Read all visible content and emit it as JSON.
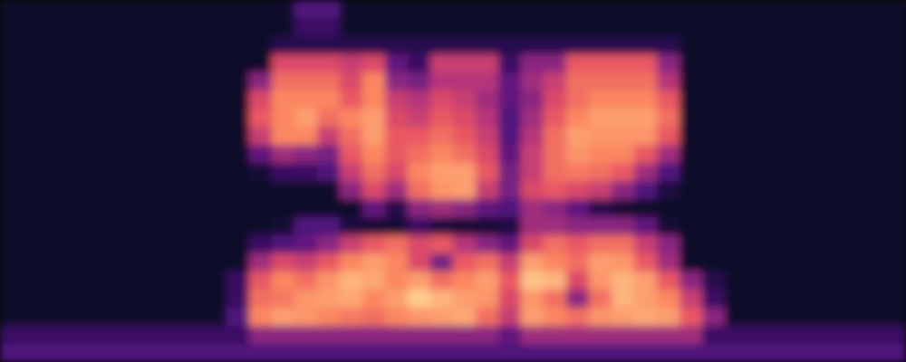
{
  "chart_data": {
    "type": "heatmap",
    "tick_labels": false,
    "color_range": [
      0,
      100
    ],
    "cells": [
      [
        8,
        8,
        8,
        8,
        8,
        8,
        8,
        8,
        8,
        8,
        8,
        8,
        8,
        25,
        25,
        8,
        8,
        8,
        8,
        8,
        8,
        8,
        8,
        8,
        8,
        8,
        8,
        8,
        8,
        8,
        8,
        8,
        8,
        8,
        8,
        8,
        8,
        8,
        8,
        8
      ],
      [
        8,
        8,
        8,
        8,
        8,
        8,
        8,
        8,
        8,
        8,
        8,
        8,
        8,
        20,
        20,
        8,
        8,
        8,
        8,
        8,
        8,
        8,
        8,
        8,
        8,
        8,
        8,
        8,
        8,
        8,
        8,
        8,
        8,
        8,
        8,
        8,
        8,
        8,
        8,
        8
      ],
      [
        8,
        8,
        8,
        8,
        8,
        8,
        8,
        8,
        8,
        8,
        8,
        8,
        15,
        15,
        15,
        15,
        15,
        15,
        15,
        15,
        15,
        15,
        15,
        15,
        15,
        15,
        15,
        15,
        15,
        15,
        8,
        8,
        8,
        8,
        8,
        8,
        8,
        8,
        8,
        8
      ],
      [
        8,
        8,
        8,
        8,
        8,
        8,
        8,
        8,
        8,
        8,
        8,
        8,
        60,
        60,
        60,
        55,
        60,
        30,
        20,
        55,
        55,
        55,
        20,
        40,
        40,
        65,
        65,
        65,
        65,
        40,
        8,
        8,
        8,
        8,
        8,
        8,
        8,
        8,
        8,
        8
      ],
      [
        8,
        8,
        8,
        8,
        8,
        8,
        8,
        8,
        8,
        8,
        8,
        40,
        70,
        70,
        70,
        60,
        75,
        40,
        35,
        50,
        50,
        50,
        30,
        45,
        55,
        70,
        70,
        70,
        70,
        50,
        8,
        8,
        8,
        8,
        8,
        8,
        8,
        8,
        8,
        8
      ],
      [
        8,
        8,
        8,
        8,
        8,
        8,
        8,
        8,
        8,
        8,
        8,
        60,
        75,
        75,
        75,
        65,
        75,
        55,
        50,
        60,
        55,
        45,
        30,
        40,
        60,
        70,
        75,
        75,
        75,
        65,
        8,
        8,
        8,
        8,
        8,
        8,
        8,
        8,
        8,
        8
      ],
      [
        8,
        8,
        8,
        8,
        8,
        8,
        8,
        8,
        8,
        8,
        8,
        65,
        75,
        80,
        70,
        75,
        80,
        60,
        55,
        65,
        60,
        50,
        25,
        45,
        65,
        75,
        80,
        80,
        80,
        70,
        8,
        8,
        8,
        8,
        8,
        8,
        8,
        8,
        8,
        8
      ],
      [
        8,
        8,
        8,
        8,
        8,
        8,
        8,
        8,
        8,
        8,
        8,
        55,
        75,
        75,
        55,
        70,
        80,
        65,
        65,
        70,
        65,
        55,
        25,
        50,
        70,
        80,
        78,
        78,
        78,
        65,
        8,
        8,
        8,
        8,
        8,
        8,
        8,
        8,
        8,
        8
      ],
      [
        8,
        8,
        8,
        8,
        8,
        8,
        8,
        8,
        8,
        8,
        8,
        30,
        45,
        40,
        35,
        65,
        75,
        65,
        70,
        75,
        70,
        60,
        30,
        55,
        70,
        78,
        75,
        75,
        65,
        45,
        8,
        8,
        8,
        8,
        8,
        8,
        8,
        8,
        8,
        8
      ],
      [
        8,
        8,
        8,
        8,
        8,
        8,
        8,
        8,
        8,
        8,
        8,
        10,
        20,
        20,
        25,
        55,
        70,
        60,
        75,
        80,
        80,
        65,
        35,
        55,
        70,
        72,
        70,
        65,
        45,
        25,
        8,
        8,
        8,
        8,
        8,
        8,
        8,
        8,
        8,
        8
      ],
      [
        8,
        8,
        8,
        8,
        8,
        8,
        8,
        8,
        8,
        8,
        8,
        8,
        8,
        8,
        8,
        40,
        60,
        45,
        70,
        78,
        80,
        55,
        35,
        60,
        65,
        60,
        55,
        40,
        25,
        12,
        8,
        8,
        8,
        8,
        8,
        8,
        8,
        8,
        8,
        8
      ],
      [
        8,
        8,
        8,
        8,
        8,
        8,
        8,
        8,
        8,
        8,
        8,
        8,
        8,
        8,
        8,
        8,
        30,
        15,
        40,
        45,
        40,
        30,
        25,
        45,
        40,
        30,
        15,
        10,
        8,
        8,
        8,
        8,
        8,
        8,
        8,
        8,
        8,
        8,
        8,
        8
      ],
      [
        8,
        8,
        8,
        8,
        8,
        8,
        8,
        8,
        8,
        8,
        8,
        8,
        10,
        25,
        25,
        12,
        10,
        10,
        20,
        12,
        10,
        10,
        12,
        45,
        45,
        40,
        40,
        40,
        30,
        10,
        8,
        8,
        8,
        8,
        8,
        8,
        8,
        8,
        8,
        8
      ],
      [
        8,
        8,
        8,
        8,
        8,
        8,
        8,
        8,
        8,
        8,
        8,
        20,
        25,
        30,
        40,
        55,
        65,
        70,
        60,
        65,
        50,
        40,
        30,
        60,
        70,
        65,
        70,
        70,
        55,
        40,
        8,
        8,
        8,
        8,
        8,
        8,
        8,
        8,
        8,
        8
      ],
      [
        8,
        8,
        8,
        8,
        8,
        8,
        8,
        8,
        8,
        8,
        8,
        45,
        60,
        55,
        65,
        75,
        80,
        75,
        60,
        35,
        65,
        70,
        55,
        80,
        75,
        70,
        80,
        78,
        65,
        45,
        8,
        8,
        8,
        8,
        8,
        8,
        8,
        8,
        8,
        8
      ],
      [
        8,
        8,
        8,
        8,
        8,
        8,
        8,
        8,
        8,
        8,
        20,
        65,
        75,
        70,
        78,
        85,
        82,
        75,
        80,
        70,
        75,
        80,
        65,
        88,
        85,
        60,
        78,
        85,
        80,
        65,
        40,
        15,
        8,
        8,
        8,
        8,
        8,
        8,
        8,
        8
      ],
      [
        8,
        8,
        8,
        8,
        8,
        8,
        8,
        8,
        8,
        8,
        20,
        70,
        72,
        78,
        80,
        82,
        75,
        80,
        90,
        85,
        80,
        78,
        60,
        78,
        70,
        40,
        70,
        85,
        80,
        75,
        55,
        20,
        8,
        8,
        8,
        8,
        8,
        8,
        8,
        8
      ],
      [
        8,
        8,
        8,
        8,
        8,
        8,
        8,
        8,
        8,
        8,
        25,
        75,
        80,
        78,
        75,
        72,
        70,
        75,
        78,
        80,
        82,
        70,
        55,
        80,
        75,
        70,
        78,
        80,
        82,
        80,
        65,
        40,
        8,
        8,
        8,
        8,
        8,
        8,
        8,
        8
      ],
      [
        20,
        20,
        20,
        20,
        20,
        20,
        20,
        20,
        20,
        20,
        20,
        40,
        40,
        40,
        40,
        40,
        40,
        40,
        40,
        40,
        40,
        40,
        30,
        45,
        45,
        45,
        45,
        45,
        45,
        45,
        45,
        20,
        20,
        20,
        20,
        20,
        20,
        20,
        20,
        20
      ],
      [
        25,
        25,
        25,
        25,
        25,
        25,
        25,
        25,
        25,
        25,
        25,
        25,
        25,
        25,
        25,
        25,
        25,
        25,
        25,
        25,
        25,
        25,
        25,
        25,
        25,
        25,
        25,
        25,
        25,
        25,
        25,
        25,
        25,
        25,
        25,
        25,
        25,
        25,
        25,
        25
      ]
    ]
  }
}
